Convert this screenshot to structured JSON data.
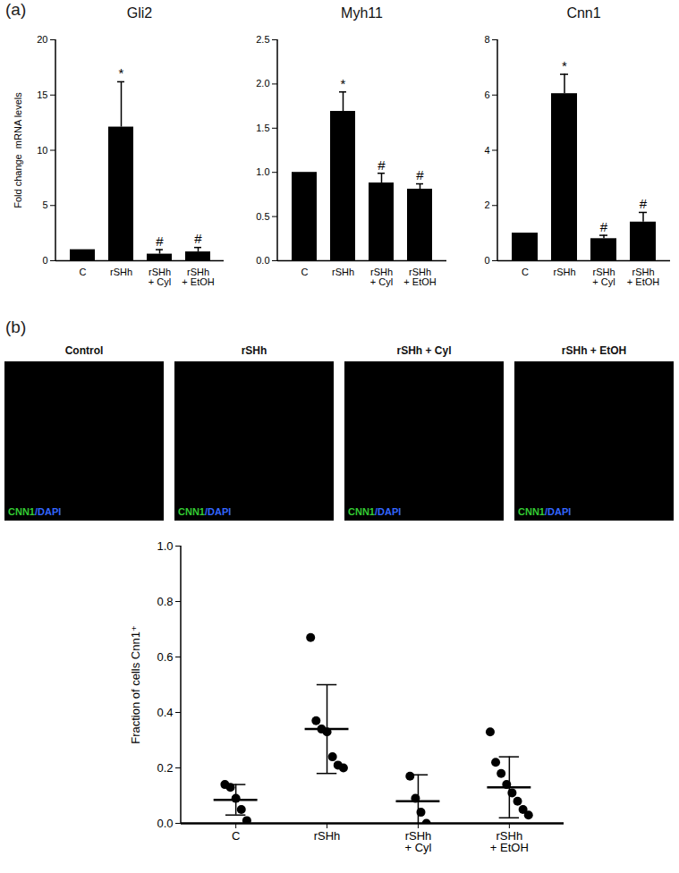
{
  "chart_data": [
    {
      "type": "bar",
      "panel": "(a)",
      "title": "Gli2",
      "ylabel": "Fold change  mRNA levels",
      "categories": [
        "C",
        "rSHh",
        "rSHh + Cyl",
        "rSHh + EtOH"
      ],
      "values": [
        1,
        12.1,
        0.6,
        0.8
      ],
      "errors": [
        0,
        4.1,
        0.4,
        0.4
      ],
      "annotations": [
        null,
        "*",
        "#",
        "#"
      ],
      "color": "#000000",
      "ylim": [
        0,
        20
      ],
      "yticks": [
        0,
        5,
        10,
        15,
        20
      ]
    },
    {
      "type": "bar",
      "title": "Myh11",
      "categories": [
        "C",
        "rSHh",
        "rSHh + Cyl",
        "rSHh + EtOH"
      ],
      "values": [
        1,
        1.69,
        0.88,
        0.81
      ],
      "errors": [
        0,
        0.22,
        0.11,
        0.06
      ],
      "annotations": [
        null,
        "*",
        "#",
        "#"
      ],
      "color": "#000000",
      "ylim": [
        0,
        2.5
      ],
      "yticks": [
        {
          "value": 0,
          "label": "0.0"
        },
        {
          "value": 0.5,
          "label": "0.5"
        },
        {
          "value": 1,
          "label": "1.0"
        },
        {
          "value": 1.5,
          "label": "1.5"
        },
        {
          "value": 2,
          "label": "2.0"
        },
        {
          "value": 2.5,
          "label": "2.5"
        }
      ]
    },
    {
      "type": "bar",
      "title": "Cnn1",
      "categories": [
        "C",
        "rSHh",
        "rSHh + Cyl",
        "rSHh + EtOH"
      ],
      "values": [
        1,
        6.05,
        0.8,
        1.4
      ],
      "errors": [
        0,
        0.7,
        0.12,
        0.35
      ],
      "annotations": [
        null,
        "*",
        "#",
        "#"
      ],
      "color": "#000000",
      "ylim": [
        0,
        8
      ],
      "yticks": [
        0,
        2,
        4,
        6,
        8
      ]
    },
    {
      "type": "scatter",
      "ylabel": "Fraction of cells Cnn1⁺",
      "categories": [
        "C",
        "rSHh",
        "rSHh + Cyl",
        "rSHh + EtOH"
      ],
      "points": [
        [
          0.14,
          0.13,
          0.09,
          0.05,
          0.01
        ],
        [
          0.67,
          0.37,
          0.34,
          0.33,
          0.24,
          0.21,
          0.2
        ],
        [
          0.17,
          0.09,
          0.04,
          0.0
        ],
        [
          0.33,
          0.22,
          0.18,
          0.14,
          0.11,
          0.08,
          0.05,
          0.03
        ]
      ],
      "means": [
        0.085,
        0.34,
        0.08,
        0.13
      ],
      "errors": [
        0.055,
        0.16,
        0.095,
        0.11
      ],
      "color": "#000000",
      "ylim": [
        0,
        1
      ],
      "yticks": [
        {
          "value": 0,
          "label": "0.0"
        },
        {
          "value": 0.2,
          "label": "0.2"
        },
        {
          "value": 0.4,
          "label": "0.4"
        },
        {
          "value": 0.6,
          "label": "0.6"
        },
        {
          "value": 0.8,
          "label": "0.8"
        },
        {
          "value": 1,
          "label": "1.0"
        }
      ]
    }
  ],
  "images": {
    "panel": "(b)",
    "titles": [
      "Control",
      "rSHh",
      "rSHh + Cyl",
      "rSHh + EtOH"
    ],
    "stain": [
      {
        "text": "CNN1",
        "color": "#33cc33"
      },
      {
        "text": "/DAPI",
        "color": "#3366ff"
      }
    ]
  }
}
